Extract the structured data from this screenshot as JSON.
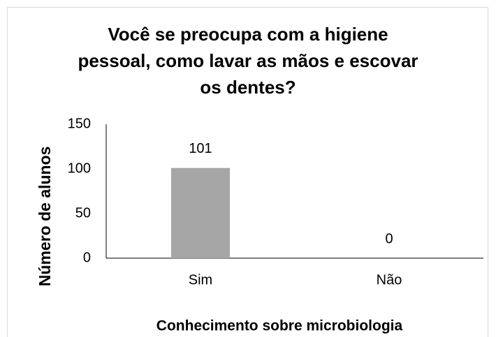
{
  "chart_data": {
    "type": "bar",
    "title": "Você se preocupa com a higiene pessoal, como lavar as mãos e escovar os dentes?",
    "categories": [
      "Sim",
      "Não"
    ],
    "values": [
      101,
      0
    ],
    "color": "#a6a6a6",
    "ylim": [
      0,
      150
    ],
    "yticks": [
      0,
      50,
      100,
      150
    ],
    "x_label": "Conhecimento sobre microbiologia",
    "y_label": "Número de alunos"
  }
}
